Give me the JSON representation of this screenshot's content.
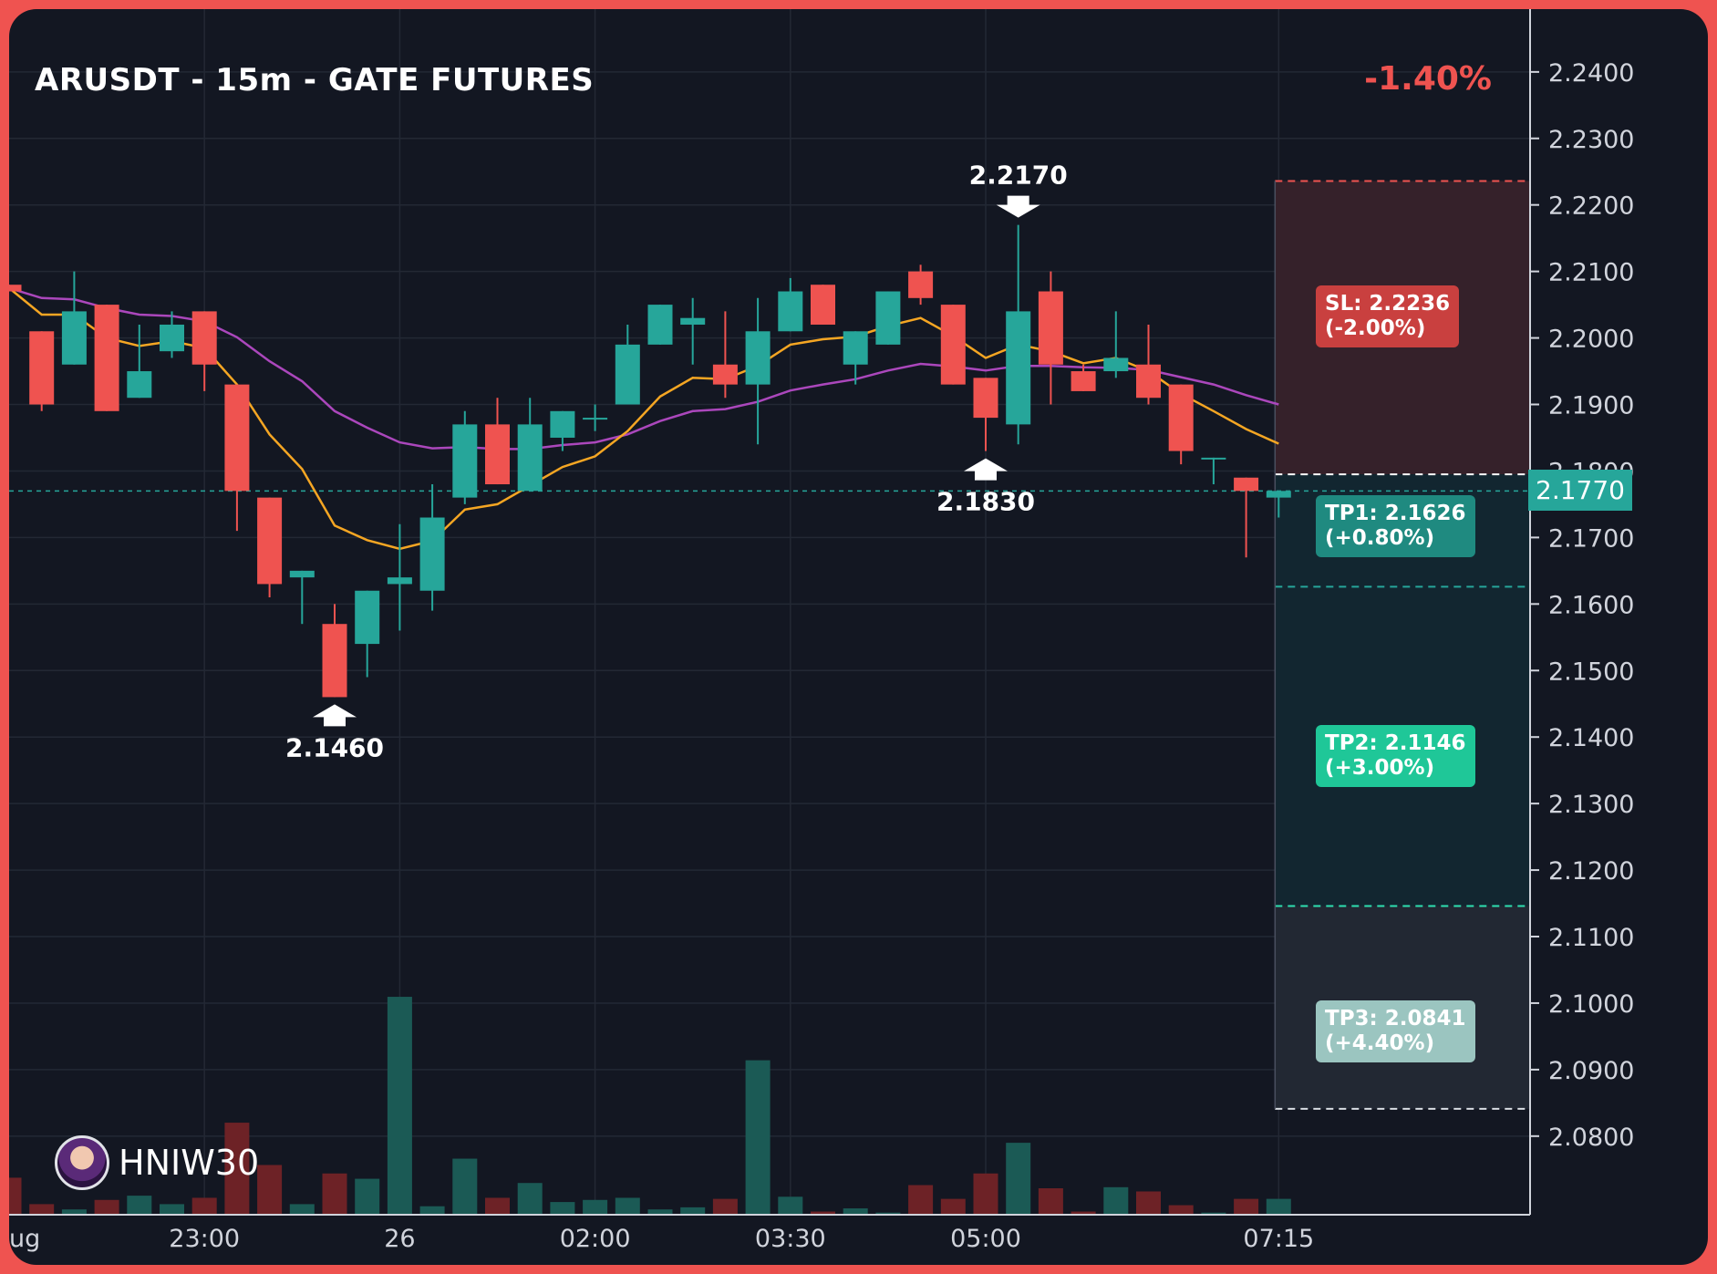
{
  "header": {
    "title": "ARUSDT - 15m - GATE FUTURES",
    "change": "-1.40%"
  },
  "colors": {
    "up": "#26a69a",
    "down": "#ef5350",
    "ma_fast": "#f5a623",
    "ma_slow": "#ab47bc",
    "background": "#131722",
    "frame": "#ef5350"
  },
  "levels": {
    "sl": "SL: 2.2236\n(-2.00%)",
    "tp1": "TP1: 2.1626\n(+0.80%)",
    "tp2": "TP2: 2.1146\n(+3.00%)",
    "tp3": "TP3: 2.0841\n(+4.40%)",
    "current_price": "2.1770"
  },
  "watermark": {
    "name": "HNIW30",
    "avatar_icon": "avatar-icon"
  },
  "chart_data": {
    "type": "candlestick",
    "title": "ARUSDT - 15m - GATE FUTURES",
    "y_ticks": [
      "2.2400",
      "2.2300",
      "2.2200",
      "2.2100",
      "2.2000",
      "2.1900",
      "2.1800",
      "2.1700",
      "2.1600",
      "2.1500",
      "2.1400",
      "2.1300",
      "2.1200",
      "2.1100",
      "2.1000",
      "2.0900",
      "2.0800"
    ],
    "ylim": [
      2.076,
      2.2445
    ],
    "x_ticks": [
      {
        "label": "ug",
        "index": -0.1
      },
      {
        "label": "23:00",
        "index": 6
      },
      {
        "label": "26",
        "index": 12
      },
      {
        "label": "02:00",
        "index": 18
      },
      {
        "label": "03:30",
        "index": 24
      },
      {
        "label": "05:00",
        "index": 30
      },
      {
        "label": "07:15",
        "index": 39
      }
    ],
    "candles": [
      {
        "o": 2.208,
        "h": 2.208,
        "l": 2.207,
        "c": 2.207,
        "v": 35
      },
      {
        "o": 2.201,
        "h": 2.201,
        "l": 2.189,
        "c": 2.19,
        "v": 10
      },
      {
        "o": 2.196,
        "h": 2.21,
        "l": 2.196,
        "c": 2.204,
        "v": 5
      },
      {
        "o": 2.205,
        "h": 2.205,
        "l": 2.189,
        "c": 2.189,
        "v": 14
      },
      {
        "o": 2.191,
        "h": 2.202,
        "l": 2.191,
        "c": 2.195,
        "v": 18
      },
      {
        "o": 2.198,
        "h": 2.204,
        "l": 2.197,
        "c": 2.202,
        "v": 10
      },
      {
        "o": 2.204,
        "h": 2.204,
        "l": 2.192,
        "c": 2.196,
        "v": 16
      },
      {
        "o": 2.193,
        "h": 2.193,
        "l": 2.171,
        "c": 2.177,
        "v": 87
      },
      {
        "o": 2.176,
        "h": 2.176,
        "l": 2.161,
        "c": 2.163,
        "v": 47
      },
      {
        "o": 2.164,
        "h": 2.165,
        "l": 2.157,
        "c": 2.165,
        "v": 10
      },
      {
        "o": 2.157,
        "h": 2.16,
        "l": 2.146,
        "c": 2.146,
        "v": 39
      },
      {
        "o": 2.154,
        "h": 2.162,
        "l": 2.149,
        "c": 2.162,
        "v": 34
      },
      {
        "o": 2.163,
        "h": 2.172,
        "l": 2.156,
        "c": 2.164,
        "v": 206
      },
      {
        "o": 2.162,
        "h": 2.178,
        "l": 2.159,
        "c": 2.173,
        "v": 8
      },
      {
        "o": 2.176,
        "h": 2.189,
        "l": 2.175,
        "c": 2.187,
        "v": 53
      },
      {
        "o": 2.187,
        "h": 2.191,
        "l": 2.178,
        "c": 2.178,
        "v": 16
      },
      {
        "o": 2.177,
        "h": 2.191,
        "l": 2.177,
        "c": 2.187,
        "v": 30
      },
      {
        "o": 2.185,
        "h": 2.189,
        "l": 2.183,
        "c": 2.189,
        "v": 12
      },
      {
        "o": 2.188,
        "h": 2.19,
        "l": 2.186,
        "c": 2.188,
        "v": 14
      },
      {
        "o": 2.19,
        "h": 2.202,
        "l": 2.19,
        "c": 2.199,
        "v": 16
      },
      {
        "o": 2.199,
        "h": 2.205,
        "l": 2.199,
        "c": 2.205,
        "v": 5
      },
      {
        "o": 2.202,
        "h": 2.206,
        "l": 2.196,
        "c": 2.203,
        "v": 7
      },
      {
        "o": 2.196,
        "h": 2.204,
        "l": 2.191,
        "c": 2.193,
        "v": 15
      },
      {
        "o": 2.193,
        "h": 2.206,
        "l": 2.184,
        "c": 2.201,
        "v": 146
      },
      {
        "o": 2.201,
        "h": 2.209,
        "l": 2.201,
        "c": 2.207,
        "v": 17
      },
      {
        "o": 2.208,
        "h": 2.208,
        "l": 2.202,
        "c": 2.202,
        "v": 3
      },
      {
        "o": 2.196,
        "h": 2.201,
        "l": 2.193,
        "c": 2.201,
        "v": 6
      },
      {
        "o": 2.199,
        "h": 2.207,
        "l": 2.199,
        "c": 2.207,
        "v": 2
      },
      {
        "o": 2.21,
        "h": 2.211,
        "l": 2.205,
        "c": 2.206,
        "v": 28
      },
      {
        "o": 2.205,
        "h": 2.205,
        "l": 2.193,
        "c": 2.193,
        "v": 15
      },
      {
        "o": 2.194,
        "h": 2.194,
        "l": 2.183,
        "c": 2.188,
        "v": 39
      },
      {
        "o": 2.187,
        "h": 2.217,
        "l": 2.184,
        "c": 2.204,
        "v": 68
      },
      {
        "o": 2.207,
        "h": 2.21,
        "l": 2.19,
        "c": 2.196,
        "v": 25
      },
      {
        "o": 2.195,
        "h": 2.196,
        "l": 2.192,
        "c": 2.192,
        "v": 3
      },
      {
        "o": 2.195,
        "h": 2.204,
        "l": 2.194,
        "c": 2.197,
        "v": 26
      },
      {
        "o": 2.196,
        "h": 2.202,
        "l": 2.19,
        "c": 2.191,
        "v": 22
      },
      {
        "o": 2.193,
        "h": 2.193,
        "l": 2.181,
        "c": 2.183,
        "v": 9
      },
      {
        "o": 2.182,
        "h": 2.182,
        "l": 2.178,
        "c": 2.182,
        "v": 2
      },
      {
        "o": 2.179,
        "h": 2.179,
        "l": 2.167,
        "c": 2.177,
        "v": 15
      },
      {
        "o": 2.176,
        "h": 2.177,
        "l": 2.173,
        "c": 2.177,
        "v": 15
      }
    ],
    "ma_fast": [
      2.2075,
      2.2035,
      2.2035,
      2.2,
      2.1988,
      2.1995,
      2.1985,
      2.193,
      2.1855,
      2.1803,
      2.1718,
      2.1696,
      2.1683,
      2.1695,
      2.1742,
      2.175,
      2.1778,
      2.1806,
      2.1822,
      2.186,
      2.1912,
      2.194,
      2.1938,
      2.1958,
      2.199,
      2.1998,
      2.2002,
      2.2018,
      2.203,
      2.2003,
      2.197,
      2.199,
      2.198,
      2.1962,
      2.197,
      2.195,
      2.1916,
      2.189,
      2.1863,
      2.1841
    ],
    "ma_slow": [
      2.2075,
      2.206,
      2.2058,
      2.2045,
      2.2035,
      2.2033,
      2.2025,
      2.2001,
      2.1965,
      2.1935,
      2.189,
      2.1865,
      2.1843,
      2.1834,
      2.1836,
      2.1833,
      2.1833,
      2.1839,
      2.1843,
      2.1855,
      2.1875,
      2.189,
      2.1893,
      2.1904,
      2.1921,
      2.193,
      2.1938,
      2.1951,
      2.1961,
      2.1957,
      2.1951,
      2.1958,
      2.1958,
      2.1956,
      2.1955,
      2.1952,
      2.1941,
      2.193,
      2.1914,
      2.19
    ],
    "annotations": [
      {
        "label": "2.1460",
        "index": 10,
        "value": 2.146,
        "position": "below"
      },
      {
        "label": "2.2170",
        "index": 31,
        "value": 2.217,
        "position": "above"
      },
      {
        "label": "2.1830",
        "index": 30,
        "value": 2.183,
        "position": "below"
      }
    ],
    "entry": 2.1795,
    "stop_loss": 2.2236,
    "take_profits": [
      2.1626,
      2.1146,
      2.0841
    ],
    "last_price": 2.177
  }
}
